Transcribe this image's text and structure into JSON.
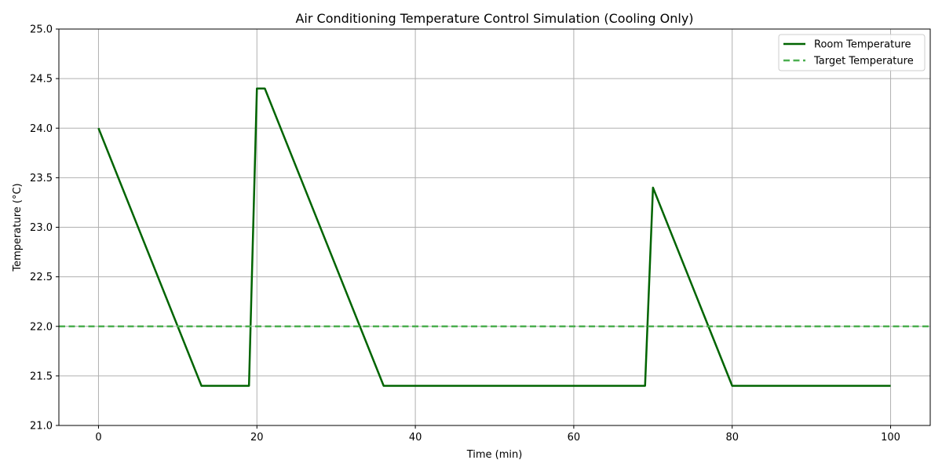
{
  "chart_data": {
    "type": "line",
    "title": "Air Conditioning Temperature Control Simulation (Cooling Only)",
    "xlabel": "Time (min)",
    "ylabel": "Temperature (°C)",
    "xlim": [
      -5,
      105
    ],
    "ylim": [
      21.0,
      25.0
    ],
    "xticks": [
      0,
      20,
      40,
      60,
      80,
      100
    ],
    "yticks": [
      21.0,
      21.5,
      22.0,
      22.5,
      23.0,
      23.5,
      24.0,
      24.5,
      25.0
    ],
    "grid": true,
    "legend_position": "top-right",
    "series": [
      {
        "name": "Room Temperature",
        "color": "#006400",
        "style": "solid",
        "x": [
          0,
          13,
          19,
          20,
          21,
          36,
          69,
          70,
          80,
          100
        ],
        "y": [
          24.0,
          21.4,
          21.4,
          24.4,
          24.4,
          21.4,
          21.4,
          23.4,
          21.4,
          21.4
        ]
      },
      {
        "name": "Target Temperature",
        "color": "#4caf50",
        "style": "dashed",
        "type": "hline",
        "y_value": 22.0
      }
    ]
  }
}
